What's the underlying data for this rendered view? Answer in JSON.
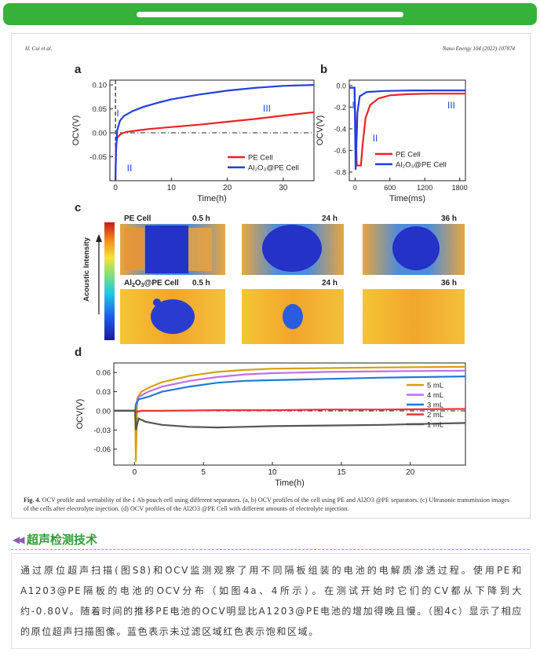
{
  "header": {
    "left": "H. Cui et al.",
    "right": "Nano Energy 104 (2022) 107874"
  },
  "panels": {
    "a": "a",
    "b": "b",
    "c": "c",
    "d": "d"
  },
  "chart_data": [
    {
      "panel": "a",
      "type": "line",
      "xlabel": "Time(h)",
      "ylabel": "OCV(V)",
      "xlim": [
        -1,
        35.5
      ],
      "ylim": [
        -0.1,
        0.11
      ],
      "xticks": [
        0,
        10,
        20,
        30
      ],
      "yticks": [
        -0.05,
        0.0,
        0.05,
        0.1
      ],
      "annotations": [
        "I",
        "II",
        "III"
      ],
      "legend": "bottom-right",
      "series": [
        {
          "name": "PE Cell",
          "color": "#ee2222",
          "points": [
            [
              0,
              -0.1
            ],
            [
              0.1,
              -0.03
            ],
            [
              0.3,
              -0.01
            ],
            [
              1,
              -0.002
            ],
            [
              2,
              0.002
            ],
            [
              4,
              0.005
            ],
            [
              6,
              0.008
            ],
            [
              10,
              0.012
            ],
            [
              15,
              0.017
            ],
            [
              20,
              0.023
            ],
            [
              25,
              0.029
            ],
            [
              30,
              0.036
            ],
            [
              35.5,
              0.043
            ]
          ]
        },
        {
          "name": "Al2O3@PE Cell",
          "color": "#1f3fe0",
          "points": [
            [
              0,
              -0.1
            ],
            [
              0.1,
              -0.04
            ],
            [
              0.3,
              0.005
            ],
            [
              0.8,
              0.025
            ],
            [
              1.5,
              0.035
            ],
            [
              3,
              0.045
            ],
            [
              5,
              0.054
            ],
            [
              8,
              0.064
            ],
            [
              10,
              0.07
            ],
            [
              15,
              0.08
            ],
            [
              20,
              0.088
            ],
            [
              25,
              0.094
            ],
            [
              30,
              0.098
            ],
            [
              35.5,
              0.1
            ]
          ]
        }
      ],
      "refline_y": 0.0
    },
    {
      "panel": "b",
      "type": "line",
      "xlabel": "Time(ms)",
      "ylabel": "OCV(V)",
      "xlim": [
        -100,
        1900
      ],
      "ylim": [
        -0.88,
        0.05
      ],
      "xticks": [
        0,
        600,
        1200,
        1800
      ],
      "yticks": [
        0.0,
        -0.2,
        -0.4,
        -0.6,
        -0.8
      ],
      "annotations": [
        "I",
        "II",
        "III"
      ],
      "legend": "bottom-right",
      "series": [
        {
          "name": "PE Cell",
          "color": "#ee2222",
          "points": [
            [
              -100,
              -0.02
            ],
            [
              -10,
              -0.02
            ],
            [
              10,
              -0.4
            ],
            [
              30,
              -0.74
            ],
            [
              100,
              -0.74
            ],
            [
              130,
              -0.55
            ],
            [
              180,
              -0.3
            ],
            [
              260,
              -0.18
            ],
            [
              400,
              -0.12
            ],
            [
              600,
              -0.09
            ],
            [
              900,
              -0.08
            ],
            [
              1300,
              -0.075
            ],
            [
              1900,
              -0.075
            ]
          ]
        },
        {
          "name": "Al2O3@PE Cell",
          "color": "#1f3fe0",
          "points": [
            [
              -100,
              -0.02
            ],
            [
              -10,
              -0.02
            ],
            [
              0,
              -0.4
            ],
            [
              10,
              -0.78
            ],
            [
              20,
              -0.6
            ],
            [
              40,
              -0.25
            ],
            [
              80,
              -0.1
            ],
            [
              200,
              -0.06
            ],
            [
              500,
              -0.05
            ],
            [
              1000,
              -0.045
            ],
            [
              1900,
              -0.045
            ]
          ]
        }
      ]
    },
    {
      "panel": "d",
      "type": "line",
      "xlabel": "Time(h)",
      "ylabel": "OCV(V)",
      "xlim": [
        -1.5,
        24
      ],
      "ylim": [
        -0.085,
        0.075
      ],
      "xticks": [
        0,
        5,
        10,
        15,
        20
      ],
      "yticks": [
        -0.06,
        -0.03,
        0.0,
        0.03,
        0.06
      ],
      "legend": "right",
      "series": [
        {
          "name": "5 mL",
          "color": "#d4a20a",
          "points": [
            [
              -1.5,
              0
            ],
            [
              0.05,
              0
            ],
            [
              0.1,
              -0.08
            ],
            [
              0.2,
              0.02
            ],
            [
              0.5,
              0.03
            ],
            [
              1,
              0.036
            ],
            [
              2,
              0.045
            ],
            [
              4,
              0.055
            ],
            [
              6,
              0.061
            ],
            [
              8,
              0.064
            ],
            [
              10,
              0.066
            ],
            [
              14,
              0.067
            ],
            [
              18,
              0.068
            ],
            [
              24,
              0.069
            ]
          ]
        },
        {
          "name": "4 mL",
          "color": "#c06fe6",
          "points": [
            [
              -1.5,
              0
            ],
            [
              0.05,
              0
            ],
            [
              0.1,
              0.01
            ],
            [
              0.3,
              0.022
            ],
            [
              1,
              0.03
            ],
            [
              2,
              0.038
            ],
            [
              4,
              0.047
            ],
            [
              6,
              0.053
            ],
            [
              8,
              0.057
            ],
            [
              10,
              0.059
            ],
            [
              14,
              0.061
            ],
            [
              18,
              0.062
            ],
            [
              24,
              0.063
            ]
          ]
        },
        {
          "name": "3 mL",
          "color": "#1f7ad9",
          "points": [
            [
              -1.5,
              0
            ],
            [
              0.05,
              0
            ],
            [
              0.1,
              0.01
            ],
            [
              0.3,
              0.018
            ],
            [
              1,
              0.022
            ],
            [
              2,
              0.03
            ],
            [
              4,
              0.038
            ],
            [
              6,
              0.044
            ],
            [
              8,
              0.047
            ],
            [
              10,
              0.048
            ],
            [
              14,
              0.05
            ],
            [
              18,
              0.052
            ],
            [
              24,
              0.054
            ]
          ]
        },
        {
          "name": "2 mL",
          "color": "#ee3333",
          "points": [
            [
              -1.5,
              0
            ],
            [
              0.05,
              0
            ],
            [
              0.1,
              -0.002
            ],
            [
              0.5,
              0.0
            ],
            [
              2,
              0.0
            ],
            [
              6,
              0.001
            ],
            [
              10,
              0.001
            ],
            [
              14,
              0.002
            ],
            [
              18,
              0.002
            ],
            [
              24,
              0.003
            ]
          ]
        },
        {
          "name": "1 mL",
          "color": "#555555",
          "points": [
            [
              -1.5,
              0
            ],
            [
              0.05,
              0
            ],
            [
              0.1,
              -0.03
            ],
            [
              0.3,
              -0.012
            ],
            [
              0.8,
              -0.017
            ],
            [
              2,
              -0.022
            ],
            [
              4,
              -0.025
            ],
            [
              6,
              -0.026
            ],
            [
              8,
              -0.025
            ],
            [
              10,
              -0.024
            ],
            [
              14,
              -0.023
            ],
            [
              18,
              -0.022
            ],
            [
              24,
              -0.019
            ]
          ]
        }
      ],
      "refline_y": 0.0
    }
  ],
  "panel_c": {
    "colorbar_label": "Acoustic Intensity",
    "rows": [
      {
        "label": "PE Cell",
        "times": [
          "0.5 h",
          "24 h",
          "36 h"
        ]
      },
      {
        "label": "Al2O3@PE Cell",
        "times": [
          "0.5 h",
          "24 h",
          "36 h"
        ]
      }
    ]
  },
  "caption": {
    "fig": "Fig. 4.",
    "text": "OCV profile and wettability of the 1 Ah pouch cell using different separators. (a, b) OCV profiles of the cell using PE and Al2O3 @PE separators. (c) Ultrasonic transmission images of the cells after electrolyte injection. (d) OCV profiles of the Al2O3 @PE Cell with different amounts of electrolyte injection."
  },
  "section": {
    "title": "超声检测技术"
  },
  "body": "通过原位超声扫描(图S8)和OCV监测观察了用不同隔板组装的电池的电解质渗透过程。使用PE和A1203@PE隔板的电池的OCV分布（如图4a、4所示）。在测试开始时它们的CV都从下降到大约-0.80V。随着时间的推移PE电池的OCV明显比A1203@PE电池的增加得晚且慢。（图4c）显示了相应的原位超声扫描图像。蓝色表示未过滤区域红色表示饱和区域。"
}
